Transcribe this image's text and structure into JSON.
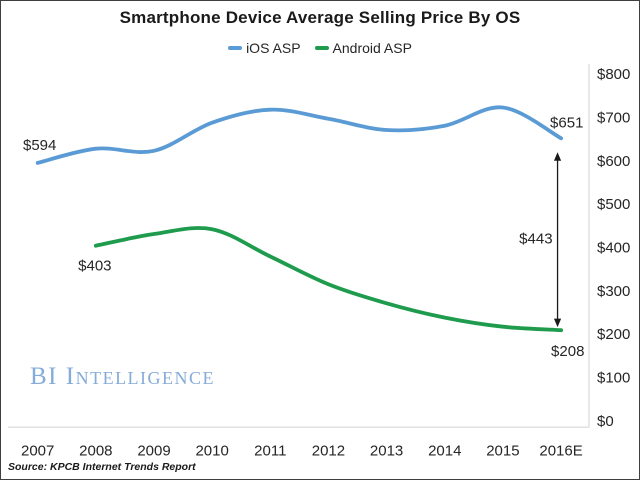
{
  "title": "Smartphone Device Average Selling Price By OS",
  "watermark": "BI Intelligence",
  "source": "Source: KPCB Internet Trends Report",
  "chart_data": {
    "type": "line",
    "title": "Smartphone Device Average Selling Price By OS",
    "categories": [
      "2007",
      "2008",
      "2009",
      "2010",
      "2011",
      "2012",
      "2013",
      "2014",
      "2015",
      "2016E"
    ],
    "series": [
      {
        "name": "iOS ASP",
        "color": "#5b9bd5",
        "values": [
          594,
          627,
          622,
          687,
          717,
          696,
          670,
          680,
          722,
          651
        ]
      },
      {
        "name": "Android ASP",
        "color": "#1e9b4d",
        "values": [
          null,
          403,
          430,
          441,
          378,
          314,
          270,
          237,
          216,
          208
        ]
      }
    ],
    "ylim": [
      0,
      800
    ],
    "ytick_step": 100,
    "yticks": [
      "$0",
      "$100",
      "$200",
      "$300",
      "$400",
      "$500",
      "$600",
      "$700",
      "$800"
    ],
    "yaxis_side": "right",
    "grid": false,
    "legend_position": "top",
    "axis_color": "#d9d9d9",
    "annotations": {
      "ios_start_label": "$594",
      "ios_end_label": "$651",
      "android_start_label": "$403",
      "android_end_label": "$208",
      "gap_label": "$443",
      "gap_arrow": true
    }
  }
}
